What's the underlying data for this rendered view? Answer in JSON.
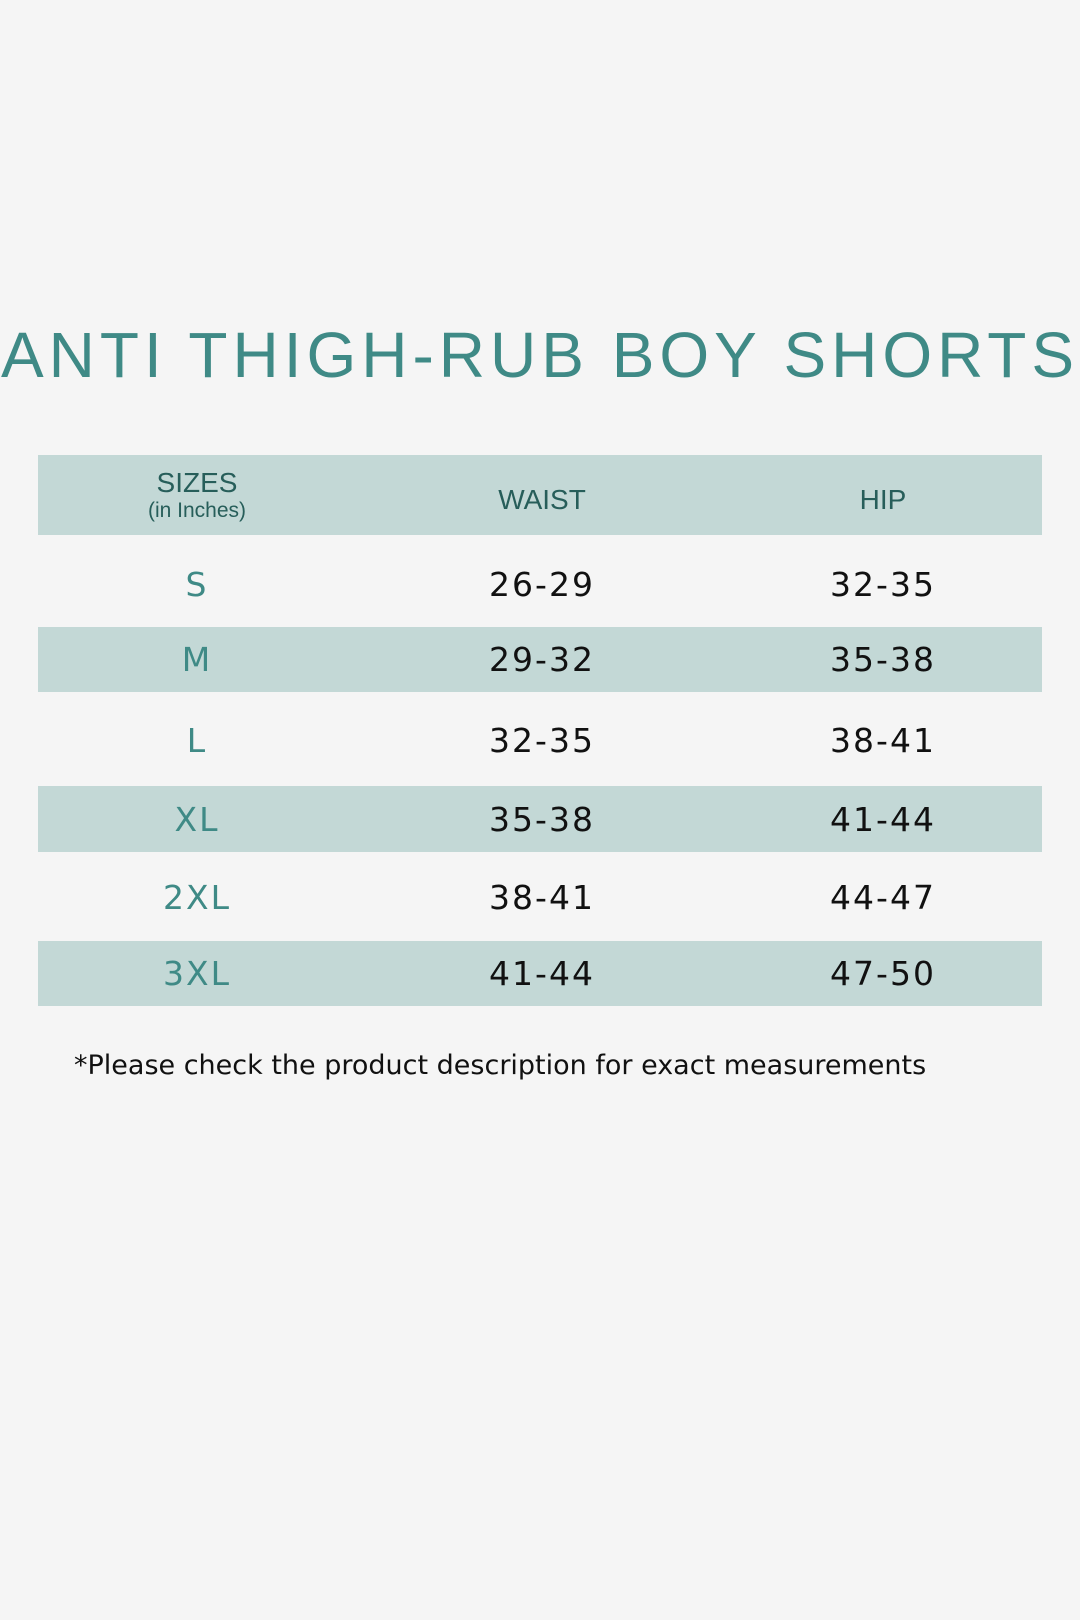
{
  "title": "ANTI THIGH-RUB BOY SHORTS",
  "colors": {
    "accent": "#3f8a86",
    "band": "#c3d8d6",
    "header_text": "#275e5a",
    "background": "#f5f5f5"
  },
  "table": {
    "headers": {
      "sizes": "SIZES",
      "sizes_sub": "(in Inches)",
      "waist": "WAIST",
      "hip": "HIP"
    },
    "rows": [
      {
        "size": "S",
        "waist": "26-29",
        "hip": "32-35"
      },
      {
        "size": "M",
        "waist": "29-32",
        "hip": "35-38"
      },
      {
        "size": "L",
        "waist": "32-35",
        "hip": "38-41"
      },
      {
        "size": "XL",
        "waist": "35-38",
        "hip": "41-44"
      },
      {
        "size": "2XL",
        "waist": "38-41",
        "hip": "44-47"
      },
      {
        "size": "3XL",
        "waist": "41-44",
        "hip": "47-50"
      }
    ]
  },
  "footnote": "*Please check the product description for exact measurements"
}
